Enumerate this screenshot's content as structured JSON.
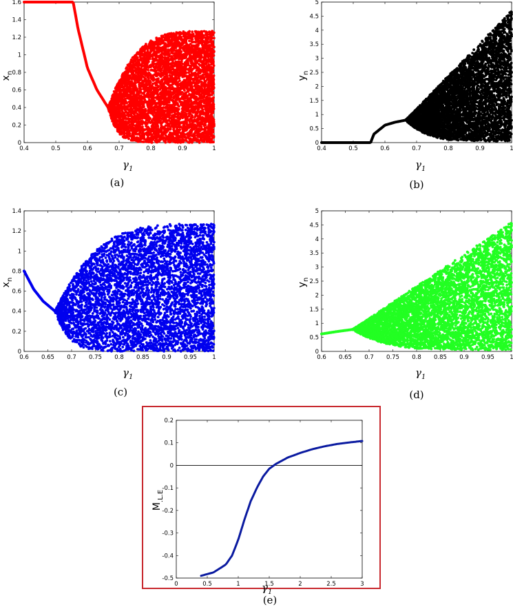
{
  "chart_data": [
    {
      "type": "scatter",
      "panel": "(a)",
      "color": "#ff0000",
      "xlabel": "γ1",
      "ylabel": "xn",
      "xlim": [
        0.4,
        1
      ],
      "ylim": [
        0,
        1.6
      ],
      "xticks": [
        "0.4",
        "0.5",
        "0.6",
        "0.7",
        "0.8",
        "0.9",
        "1"
      ],
      "yticks": [
        "0",
        "0.2",
        "0.4",
        "0.6",
        "0.8",
        "1",
        "1.2",
        "1.4",
        "1.6"
      ],
      "fixed_point_curve": {
        "x": [
          0.4,
          0.555,
          0.57,
          0.6,
          0.63,
          0.665
        ],
        "y": [
          1.6,
          1.6,
          1.3,
          0.85,
          0.6,
          0.4
        ]
      },
      "chaos_region": {
        "x_start": 0.665,
        "x_end": 1.0,
        "lower": 0.0,
        "upper_start": 0.4,
        "upper_end": 1.27
      }
    },
    {
      "type": "scatter",
      "panel": "(b)",
      "color": "#000000",
      "xlabel": "γ1",
      "ylabel": "yn",
      "xlim": [
        0.4,
        1
      ],
      "ylim": [
        0,
        5
      ],
      "xticks": [
        "0.4",
        "0.5",
        "0.6",
        "0.7",
        "0.8",
        "0.9",
        "1"
      ],
      "yticks": [
        "0",
        "0.5",
        "1",
        "1.5",
        "2",
        "2.5",
        "3",
        "3.5",
        "4",
        "4.5",
        "5"
      ],
      "fixed_point_curve": {
        "x": [
          0.4,
          0.555,
          0.565,
          0.6,
          0.63,
          0.665
        ],
        "y": [
          0.0,
          0.0,
          0.3,
          0.62,
          0.72,
          0.8
        ]
      },
      "chaos_region": {
        "x_start": 0.665,
        "x_end": 1.0,
        "lower_start": 0.8,
        "lower_end": 0.05,
        "upper_start": 0.8,
        "upper_end": 4.7
      }
    },
    {
      "type": "scatter",
      "panel": "(c)",
      "color": "#0000ee",
      "xlabel": "γ1",
      "ylabel": "xn",
      "xlim": [
        0.6,
        1
      ],
      "ylim": [
        0,
        1.4
      ],
      "xticks": [
        "0.6",
        "0.65",
        "0.7",
        "0.75",
        "0.8",
        "0.85",
        "0.9",
        "0.95",
        "1"
      ],
      "yticks": [
        "0",
        "0.2",
        "0.4",
        "0.6",
        "0.8",
        "1",
        "1.2",
        "1.4"
      ],
      "fixed_point_curve": {
        "x": [
          0.6,
          0.62,
          0.64,
          0.665
        ],
        "y": [
          0.8,
          0.62,
          0.5,
          0.4
        ]
      },
      "chaos_region": {
        "x_start": 0.665,
        "x_end": 1.0,
        "lower": 0.0,
        "upper_start": 0.4,
        "upper_end": 1.27
      }
    },
    {
      "type": "scatter",
      "panel": "(d)",
      "color": "#22ff22",
      "xlabel": "γ1",
      "ylabel": "yn",
      "xlim": [
        0.6,
        1
      ],
      "ylim": [
        0,
        5
      ],
      "xticks": [
        "0.6",
        "0.65",
        "0.7",
        "0.75",
        "0.8",
        "0.85",
        "0.9",
        "0.95",
        "1"
      ],
      "yticks": [
        "0",
        "0.5",
        "1",
        "1.5",
        "2",
        "2.5",
        "3",
        "3.5",
        "4",
        "4.5",
        "5"
      ],
      "fixed_point_curve": {
        "x": [
          0.6,
          0.63,
          0.665
        ],
        "y": [
          0.62,
          0.7,
          0.78
        ]
      },
      "chaos_region": {
        "x_start": 0.665,
        "x_end": 1.0,
        "lower_start": 0.78,
        "lower_end": 0.05,
        "upper_start": 0.78,
        "upper_end": 4.6
      }
    },
    {
      "type": "line",
      "panel": "(e)",
      "color": "#0a1aa0",
      "frame_color": "#c8282e",
      "xlabel": "γ1",
      "ylabel": "M.L.E",
      "xlim": [
        0,
        3
      ],
      "ylim": [
        -0.5,
        0.2
      ],
      "xticks": [
        "0",
        "0.5",
        "1",
        "1.5",
        "2",
        "2.5",
        "3"
      ],
      "yticks": [
        "-0.5",
        "-0.4",
        "-0.3",
        "-0.2",
        "-0.1",
        "0",
        "0.1",
        "0.2"
      ],
      "zero_line": 0,
      "series": [
        {
          "x": [
            0.4,
            0.6,
            0.8,
            0.9,
            1.0,
            1.1,
            1.2,
            1.3,
            1.4,
            1.5,
            1.6,
            1.7,
            1.8,
            2.0,
            2.2,
            2.4,
            2.6,
            2.8,
            3.0
          ],
          "y": [
            -0.49,
            -0.475,
            -0.44,
            -0.4,
            -0.33,
            -0.24,
            -0.16,
            -0.1,
            -0.05,
            -0.015,
            0.005,
            0.02,
            0.035,
            0.055,
            0.072,
            0.085,
            0.095,
            0.102,
            0.108
          ]
        }
      ]
    }
  ]
}
